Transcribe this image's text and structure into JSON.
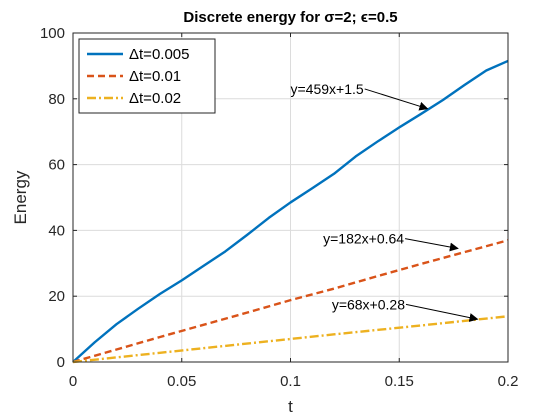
{
  "chart_data": {
    "type": "line",
    "title": "Discrete energy for σ=2; ϵ=0.5",
    "xlabel": "t",
    "ylabel": "Energy",
    "xlim": [
      0,
      0.2
    ],
    "ylim": [
      0,
      100
    ],
    "xticks": [
      "0",
      "0.05",
      "0.1",
      "0.15",
      "0.2"
    ],
    "yticks": [
      "0",
      "20",
      "40",
      "60",
      "80",
      "100"
    ],
    "grid": true,
    "legend_position": "top-left",
    "series": [
      {
        "name": "Δt=0.005",
        "color": "#0072BD",
        "style": "solid",
        "x": [
          0,
          0.005,
          0.01,
          0.02,
          0.03,
          0.04,
          0.05,
          0.06,
          0.07,
          0.08,
          0.09,
          0.1,
          0.11,
          0.12,
          0.13,
          0.14,
          0.15,
          0.16,
          0.17,
          0.18,
          0.19,
          0.2
        ],
        "y": [
          0,
          3,
          6,
          11.5,
          16.2,
          20.7,
          24.8,
          29.2,
          33.6,
          38.6,
          43.8,
          48.5,
          52.8,
          57.2,
          62.5,
          67,
          71.3,
          75.4,
          79.6,
          84.2,
          88.6,
          91.5
        ]
      },
      {
        "name": "Δt=0.01",
        "color": "#D95319",
        "style": "dashed",
        "x": [
          0,
          0.02,
          0.04,
          0.06,
          0.08,
          0.1,
          0.12,
          0.14,
          0.16,
          0.18,
          0.2
        ],
        "y": [
          0,
          3.8,
          7.6,
          11.3,
          15,
          18.8,
          22.3,
          26.1,
          29.8,
          33.4,
          37
        ]
      },
      {
        "name": "Δt=0.02",
        "color": "#EDB120",
        "style": "dash-dot",
        "x": [
          0,
          0.04,
          0.08,
          0.12,
          0.16,
          0.2
        ],
        "y": [
          0,
          2.8,
          5.6,
          8.4,
          11.1,
          13.9
        ]
      }
    ],
    "annotations": [
      {
        "text": "y=459x+1.5",
        "text_at": [
          0.1,
          83
        ],
        "arrow_to": [
          0.163,
          77
        ]
      },
      {
        "text": "y=182x+0.64",
        "text_at": [
          0.115,
          37.5
        ],
        "arrow_to": [
          0.177,
          34.5
        ]
      },
      {
        "text": "y=68x+0.28",
        "text_at": [
          0.119,
          17.5
        ],
        "arrow_to": [
          0.186,
          13
        ]
      }
    ]
  }
}
